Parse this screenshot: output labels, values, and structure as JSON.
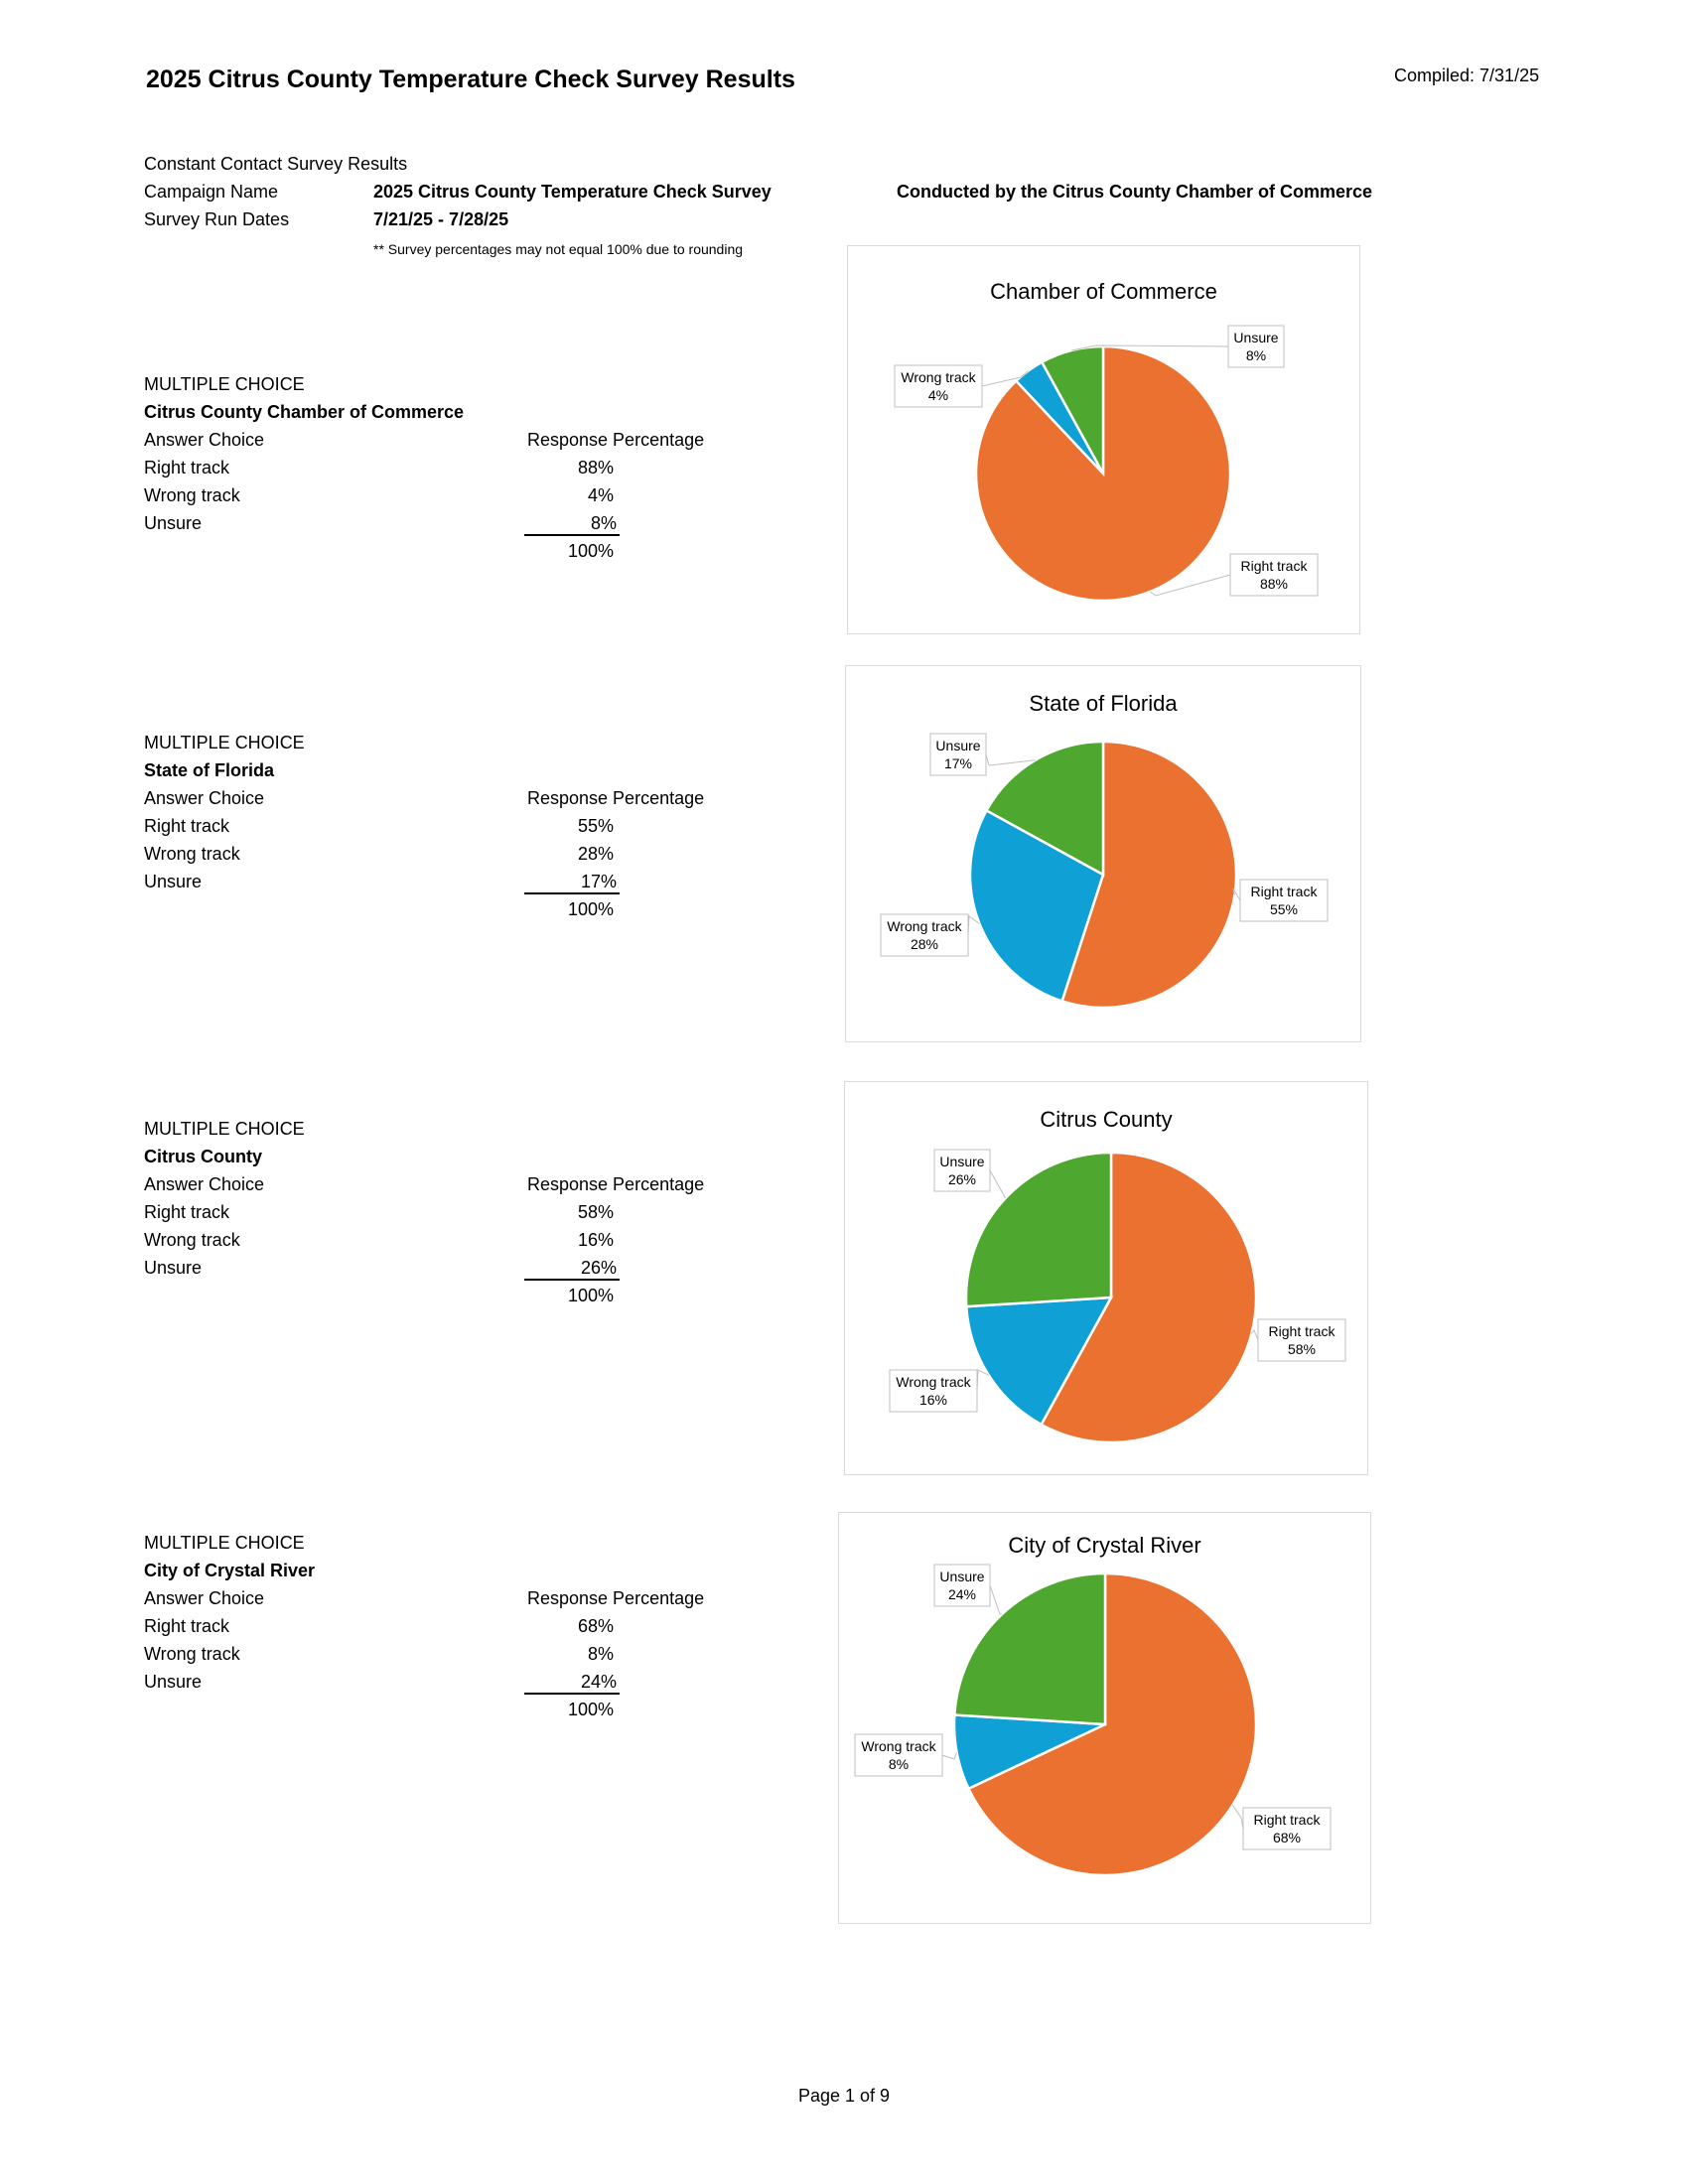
{
  "header": {
    "title": "2025 Citrus County Temperature Check Survey Results",
    "compiled": "Compiled: 7/31/25"
  },
  "info": {
    "source": "Constant Contact Survey Results",
    "campaign_label": "Campaign Name",
    "campaign_value": "2025 Citrus County Temperature Check Survey",
    "dates_label": "Survey Run Dates",
    "dates_value": "7/21/25 - 7/28/25",
    "note": "** Survey percentages may not equal 100% due to rounding",
    "conducted_by": "Conducted by the Citrus County Chamber of Commerce"
  },
  "colors": {
    "right": "#EA7130",
    "wrong": "#0FA0D5",
    "unsure": "#4EA72E",
    "label_border": "#bfbfbf"
  },
  "sections": [
    {
      "kind": "MULTIPLE CHOICE",
      "subject": "Citrus County Chamber of  Commerce",
      "col_answer": "Answer Choice",
      "col_percent": "Response Percentage",
      "rows": [
        {
          "choice": "Right track",
          "percent": "88%"
        },
        {
          "choice": "Wrong track",
          "percent": "4%"
        },
        {
          "choice": "Unsure",
          "percent": "8%"
        }
      ],
      "total": "100%"
    },
    {
      "kind": "MULTIPLE CHOICE",
      "subject": "State of Florida",
      "col_answer": "Answer Choice",
      "col_percent": "Response Percentage",
      "rows": [
        {
          "choice": "Right track",
          "percent": "55%"
        },
        {
          "choice": "Wrong track",
          "percent": "28%"
        },
        {
          "choice": "Unsure",
          "percent": "17%"
        }
      ],
      "total": "100%"
    },
    {
      "kind": "MULTIPLE CHOICE",
      "subject": "Citrus County",
      "col_answer": "Answer Choice",
      "col_percent": "Response Percentage",
      "rows": [
        {
          "choice": "Right track",
          "percent": "58%"
        },
        {
          "choice": "Wrong track",
          "percent": "16%"
        },
        {
          "choice": "Unsure",
          "percent": "26%"
        }
      ],
      "total": "100%"
    },
    {
      "kind": "MULTIPLE CHOICE",
      "subject": "City of Crystal River",
      "col_answer": "Answer Choice",
      "col_percent": "Response Percentage",
      "rows": [
        {
          "choice": "Right track",
          "percent": "68%"
        },
        {
          "choice": "Wrong track",
          "percent": "8%"
        },
        {
          "choice": "Unsure",
          "percent": "24%"
        }
      ],
      "total": "100%"
    }
  ],
  "chart_data": [
    {
      "type": "pie",
      "title": "Chamber of Commerce",
      "categories": [
        "Right track",
        "Wrong track",
        "Unsure"
      ],
      "values": [
        88,
        4,
        8
      ],
      "labels": [
        "88%",
        "4%",
        "8%"
      ]
    },
    {
      "type": "pie",
      "title": "State of Florida",
      "categories": [
        "Right track",
        "Wrong track",
        "Unsure"
      ],
      "values": [
        55,
        28,
        17
      ],
      "labels": [
        "55%",
        "28%",
        "17%"
      ]
    },
    {
      "type": "pie",
      "title": "Citrus County",
      "categories": [
        "Right track",
        "Wrong track",
        "Unsure"
      ],
      "values": [
        58,
        16,
        26
      ],
      "labels": [
        "58%",
        "16%",
        "26%"
      ]
    },
    {
      "type": "pie",
      "title": "City of Crystal River",
      "categories": [
        "Right track",
        "Wrong track",
        "Unsure"
      ],
      "values": [
        68,
        8,
        24
      ],
      "labels": [
        "68%",
        "8%",
        "24%"
      ]
    }
  ],
  "footer": {
    "page": "Page 1 of 9"
  }
}
